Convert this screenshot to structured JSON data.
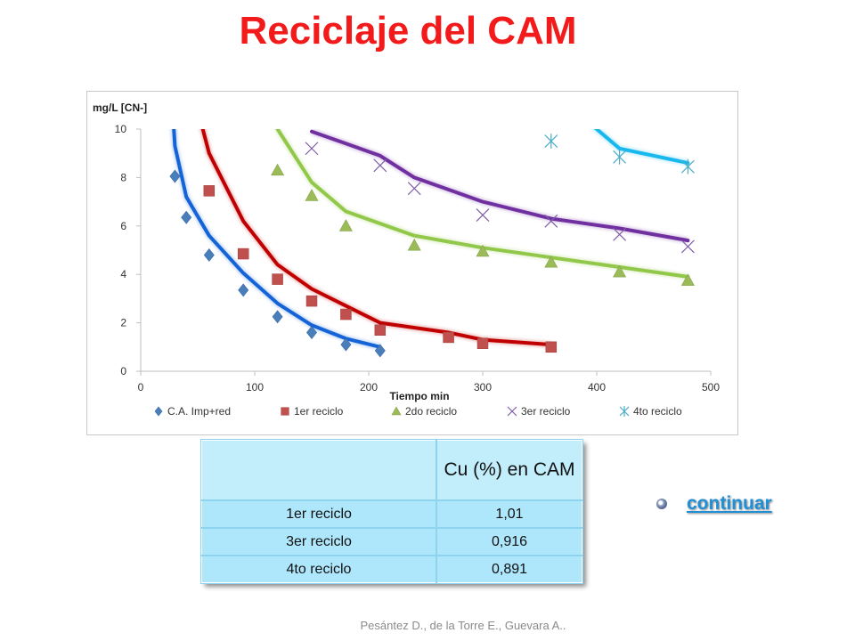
{
  "slide": {
    "title": "Reciclaje del CAM",
    "footer": "Pesántez D., de la Torre E., Guevara A..",
    "link_label": "continuar"
  },
  "table": {
    "header": [
      "",
      "Cu (%) en CAM"
    ],
    "rows": [
      [
        "1er reciclo",
        "1,01"
      ],
      [
        "3er reciclo",
        "0,916"
      ],
      [
        "4to reciclo",
        "0,891"
      ]
    ]
  },
  "chart_data": {
    "type": "scatter",
    "title": "",
    "xlabel": "Tiempo min",
    "ylabel": "mg/L [CN-]",
    "xlim": [
      0,
      500
    ],
    "ylim": [
      0,
      10
    ],
    "xticks": [
      "0",
      "100",
      "200",
      "300",
      "400",
      "500"
    ],
    "yticks": [
      "0",
      "2",
      "4",
      "6",
      "8",
      "10"
    ],
    "grid": false,
    "legend_position": "bottom",
    "series": [
      {
        "name": "C.A. Imp+red",
        "marker": "diamond",
        "color": "#4a7ebb",
        "fit_color": "#1464d8",
        "points": [
          [
            30,
            8.05
          ],
          [
            40,
            6.35
          ],
          [
            60,
            4.8
          ],
          [
            90,
            3.35
          ],
          [
            120,
            2.25
          ],
          [
            150,
            1.6
          ],
          [
            180,
            1.1
          ],
          [
            210,
            0.85
          ]
        ],
        "fit": [
          [
            28,
            10.8
          ],
          [
            30,
            9.3
          ],
          [
            40,
            7.2
          ],
          [
            60,
            5.6
          ],
          [
            90,
            4.05
          ],
          [
            120,
            2.8
          ],
          [
            150,
            1.9
          ],
          [
            180,
            1.35
          ],
          [
            210,
            1.0
          ]
        ]
      },
      {
        "name": "1er reciclo",
        "marker": "square",
        "color": "#c0504d",
        "fit_color": "#c00000",
        "points": [
          [
            60,
            7.45
          ],
          [
            90,
            4.85
          ],
          [
            120,
            3.8
          ],
          [
            150,
            2.9
          ],
          [
            180,
            2.35
          ],
          [
            210,
            1.7
          ],
          [
            270,
            1.4
          ],
          [
            300,
            1.15
          ],
          [
            360,
            1.0
          ]
        ],
        "fit": [
          [
            50,
            10.8
          ],
          [
            60,
            9.0
          ],
          [
            90,
            6.2
          ],
          [
            120,
            4.4
          ],
          [
            150,
            3.4
          ],
          [
            180,
            2.7
          ],
          [
            210,
            2.0
          ],
          [
            270,
            1.6
          ],
          [
            300,
            1.3
          ],
          [
            360,
            1.1
          ]
        ]
      },
      {
        "name": "2do reciclo",
        "marker": "triangle",
        "color": "#9bbb59",
        "fit_color": "#92c84a",
        "points": [
          [
            120,
            8.3
          ],
          [
            150,
            7.25
          ],
          [
            180,
            6.0
          ],
          [
            240,
            5.2
          ],
          [
            300,
            4.95
          ],
          [
            360,
            4.5
          ],
          [
            420,
            4.1
          ],
          [
            480,
            3.75
          ]
        ],
        "fit": [
          [
            115,
            10.8
          ],
          [
            120,
            10.0
          ],
          [
            150,
            7.8
          ],
          [
            180,
            6.6
          ],
          [
            240,
            5.6
          ],
          [
            300,
            5.1
          ],
          [
            360,
            4.7
          ],
          [
            420,
            4.3
          ],
          [
            480,
            3.9
          ]
        ]
      },
      {
        "name": "3er reciclo",
        "marker": "x",
        "color": "#7f5fa8",
        "fit_color": "#7030a0",
        "points": [
          [
            150,
            9.2
          ],
          [
            210,
            8.5
          ],
          [
            240,
            7.55
          ],
          [
            300,
            6.45
          ],
          [
            360,
            6.2
          ],
          [
            420,
            5.65
          ],
          [
            480,
            5.15
          ]
        ],
        "fit": [
          [
            150,
            9.9
          ],
          [
            210,
            8.9
          ],
          [
            240,
            8.0
          ],
          [
            300,
            7.0
          ],
          [
            360,
            6.3
          ],
          [
            420,
            5.9
          ],
          [
            480,
            5.4
          ]
        ]
      },
      {
        "name": "4to reciclo",
        "marker": "asterisk",
        "color": "#4bacc6",
        "fit_color": "#18b8ee",
        "points": [
          [
            360,
            9.5
          ],
          [
            420,
            8.85
          ],
          [
            480,
            8.45
          ]
        ],
        "fit": [
          [
            380,
            10.8
          ],
          [
            420,
            9.2
          ],
          [
            480,
            8.6
          ]
        ]
      }
    ]
  }
}
